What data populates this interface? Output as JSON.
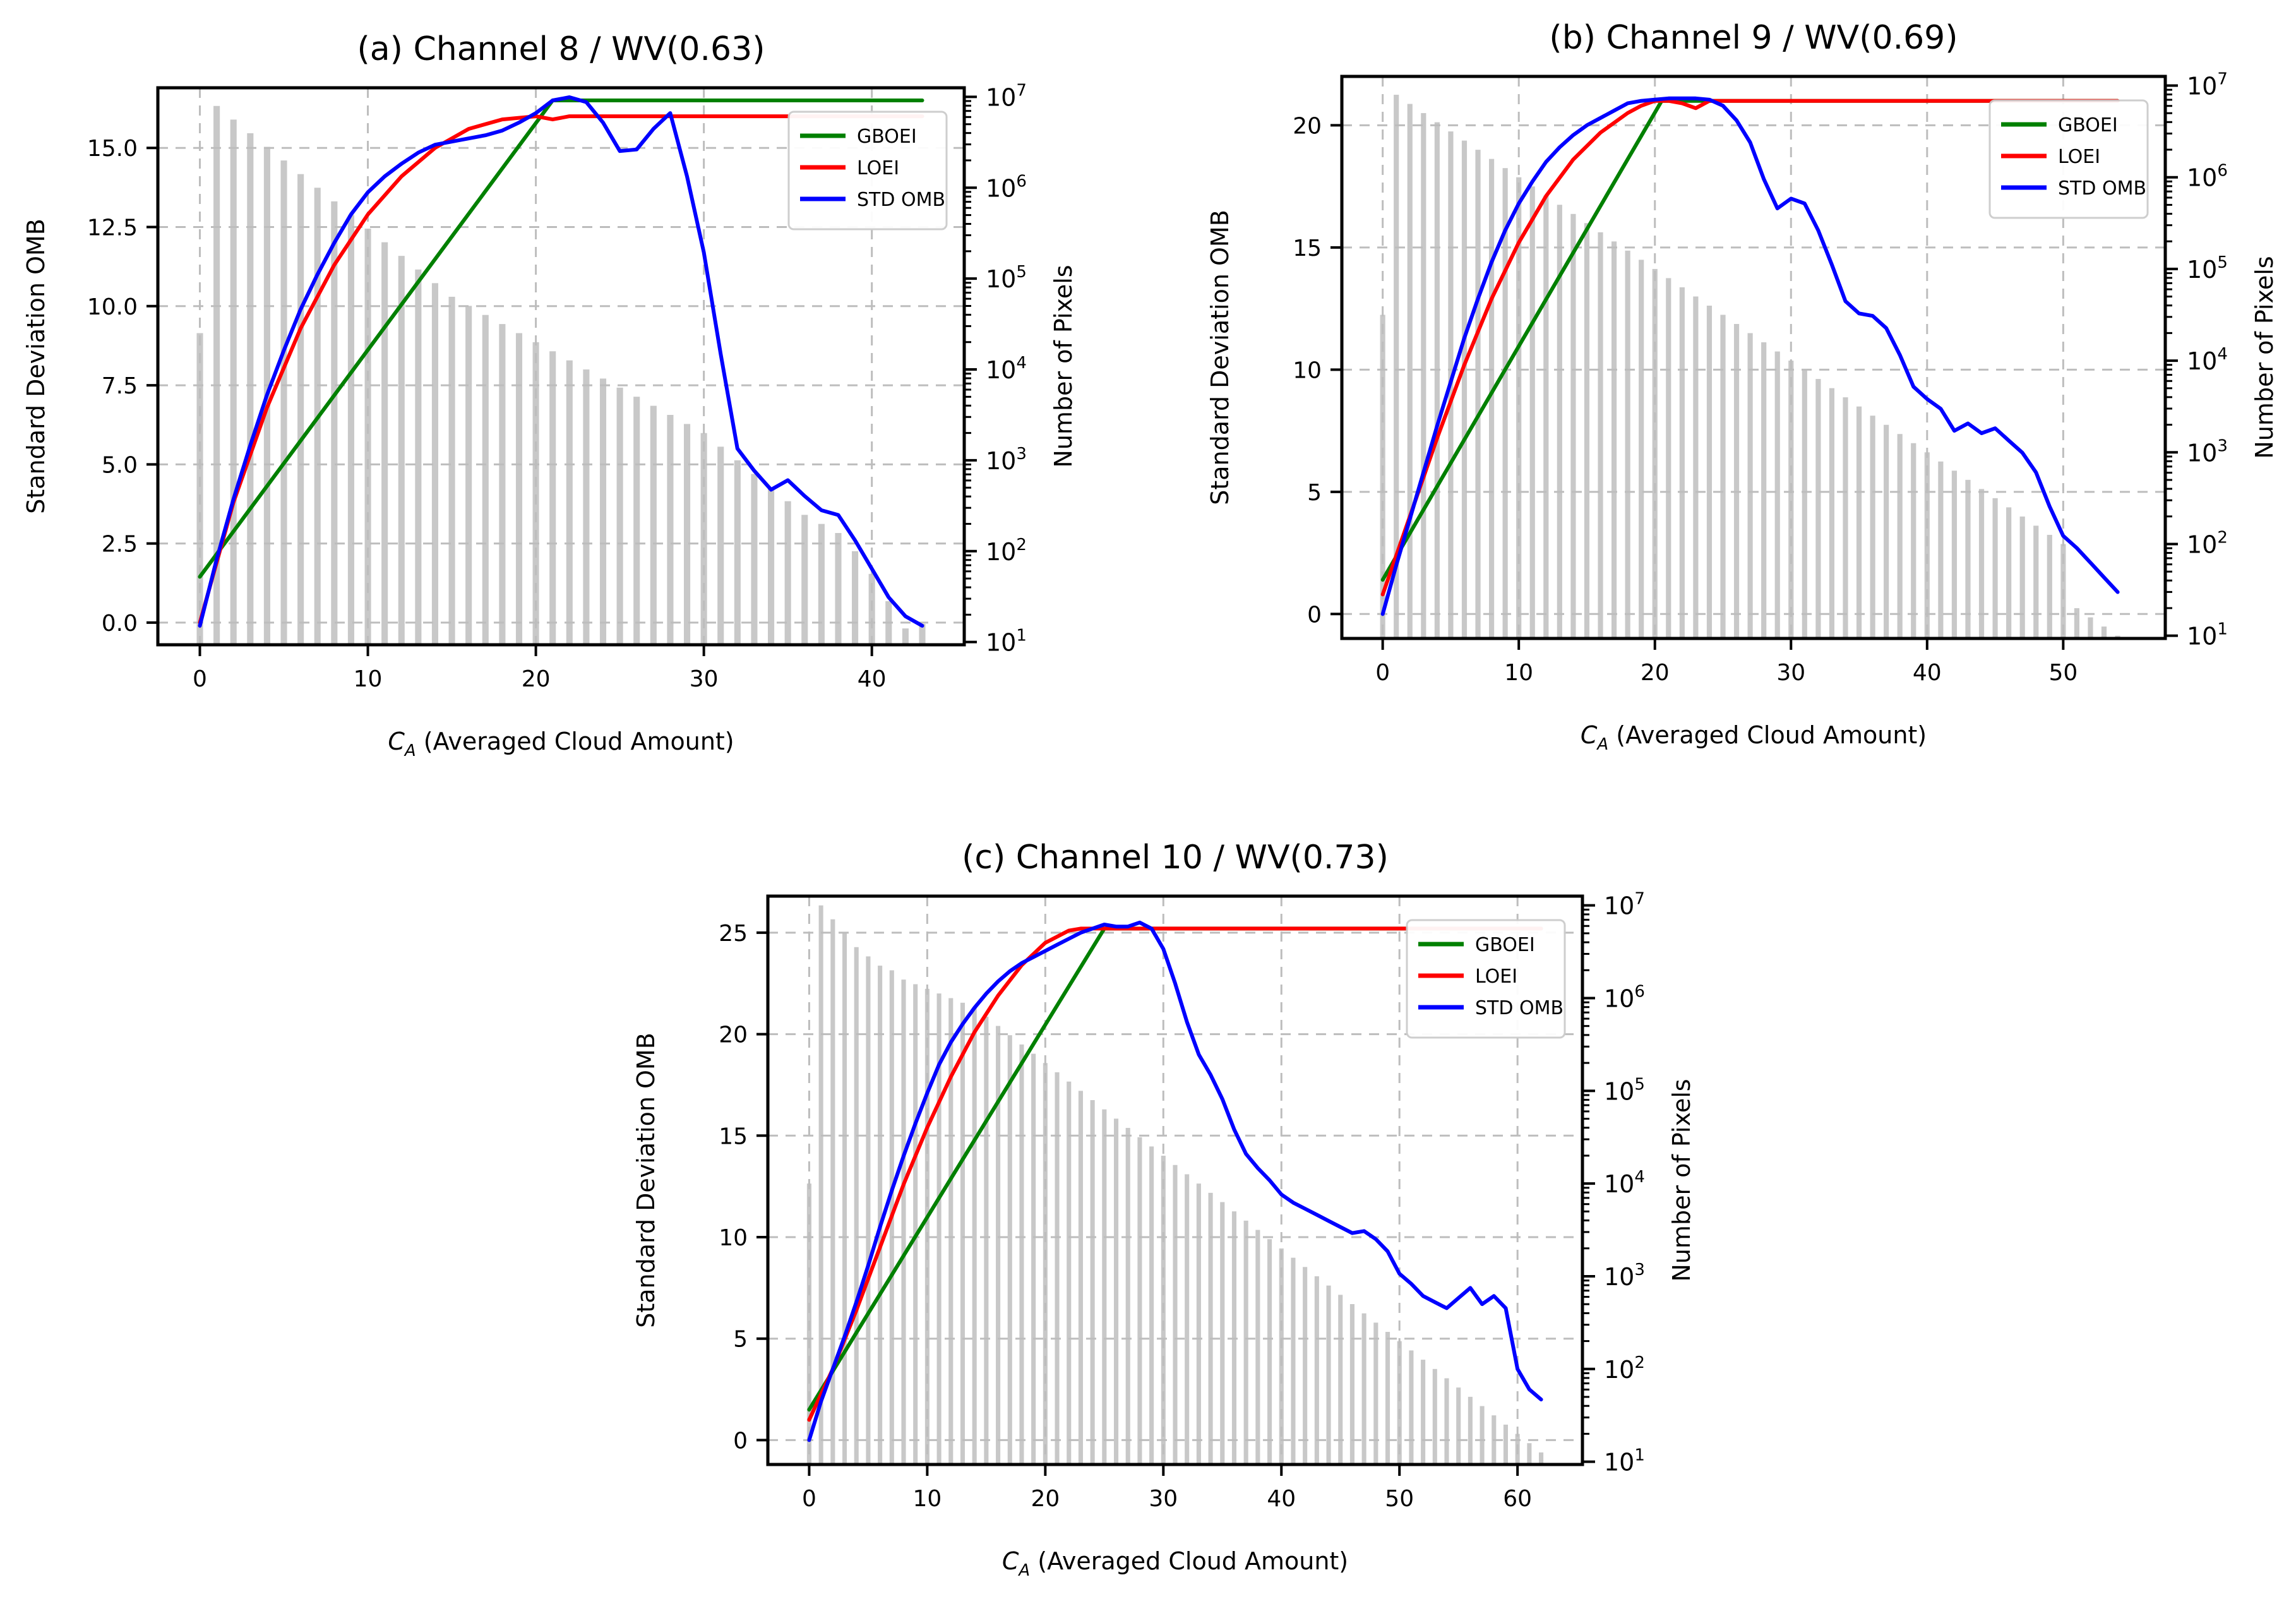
{
  "figure": {
    "panels": 3
  },
  "chart_data": [
    {
      "type": "line",
      "title": "(a) Channel 8 / WV(0.63)",
      "xlabel_sym": "C",
      "xlabel_sub": "A",
      "xlabel_rest": " (Averaged Cloud Amount)",
      "ylabel": "Standard Deviation OMB",
      "y2label": "Number of Pixels",
      "xlim": [
        -2.5,
        45.5
      ],
      "ylim": [
        -0.7,
        16.9
      ],
      "y2_log_range": [
        0.97,
        7.1
      ],
      "xticks": [
        0,
        10,
        20,
        30,
        40
      ],
      "xticklabels": [
        "0",
        "10",
        "20",
        "30",
        "40"
      ],
      "yticks": [
        0,
        2.5,
        5,
        7.5,
        10,
        12.5,
        15
      ],
      "yticklabels": [
        "0.0",
        "2.5",
        "5.0",
        "7.5",
        "10.0",
        "12.5",
        "15.0"
      ],
      "y2ticks": [
        1,
        2,
        3,
        4,
        5,
        6,
        7
      ],
      "y2ticklabels": [
        {
          "base": "10",
          "exp": "1"
        },
        {
          "base": "10",
          "exp": "2"
        },
        {
          "base": "10",
          "exp": "3"
        },
        {
          "base": "10",
          "exp": "4"
        },
        {
          "base": "10",
          "exp": "5"
        },
        {
          "base": "10",
          "exp": "6"
        },
        {
          "base": "10",
          "exp": "7"
        }
      ],
      "grid": true,
      "legend_position": "upper-right",
      "series": [
        {
          "name": "GBOEI",
          "color": "#008000",
          "x": [
            0,
            21,
            43
          ],
          "y": [
            1.45,
            16.5,
            16.5
          ]
        },
        {
          "name": "LOEI",
          "color": "#ff0000",
          "x": [
            0,
            2,
            4,
            6,
            8,
            10,
            12,
            14,
            16,
            18,
            20,
            21,
            22,
            24,
            26,
            28,
            30,
            35,
            40,
            43
          ],
          "y": [
            0,
            3.8,
            6.8,
            9.3,
            11.3,
            12.9,
            14.1,
            15.0,
            15.6,
            15.9,
            16.0,
            15.9,
            16.0,
            16.0,
            16.0,
            16.0,
            16.0,
            16.0,
            16.0,
            16.0
          ]
        },
        {
          "name": "STD OMB",
          "color": "#0000ff",
          "x": [
            0,
            1,
            2,
            3,
            4,
            5,
            6,
            7,
            8,
            9,
            10,
            11,
            12,
            13,
            14,
            15,
            16,
            17,
            18,
            19,
            20,
            21,
            22,
            23,
            24,
            25,
            26,
            27,
            28,
            29,
            30,
            31,
            32,
            33,
            34,
            35,
            36,
            37,
            38,
            39,
            40,
            41,
            42,
            43
          ],
          "y": [
            -0.1,
            2.0,
            3.9,
            5.6,
            7.2,
            8.6,
            9.9,
            11.0,
            12.0,
            12.9,
            13.6,
            14.1,
            14.5,
            14.85,
            15.1,
            15.2,
            15.3,
            15.4,
            15.55,
            15.8,
            16.1,
            16.5,
            16.6,
            16.45,
            15.8,
            14.9,
            14.95,
            15.6,
            16.1,
            14.1,
            11.7,
            8.5,
            5.5,
            4.8,
            4.2,
            4.5,
            4.0,
            3.55,
            3.4,
            2.6,
            1.7,
            0.8,
            0.2,
            -0.1
          ]
        },
        {
          "name": "",
          "kind": "bar",
          "color": "#c8c8c8",
          "x": [
            0,
            1,
            2,
            3,
            4,
            5,
            6,
            7,
            8,
            9,
            10,
            11,
            12,
            13,
            14,
            15,
            16,
            17,
            18,
            19,
            20,
            21,
            22,
            23,
            24,
            25,
            26,
            27,
            28,
            29,
            30,
            31,
            32,
            33,
            34,
            35,
            36,
            37,
            38,
            39,
            40,
            41,
            42,
            43
          ],
          "log10_count": [
            4.4,
            6.9,
            6.75,
            6.6,
            6.45,
            6.3,
            6.15,
            6.0,
            5.85,
            5.7,
            5.55,
            5.4,
            5.25,
            5.1,
            4.95,
            4.8,
            4.7,
            4.6,
            4.5,
            4.4,
            4.3,
            4.2,
            4.1,
            4.0,
            3.9,
            3.8,
            3.7,
            3.6,
            3.5,
            3.4,
            3.3,
            3.15,
            3.0,
            2.85,
            2.7,
            2.55,
            2.4,
            2.3,
            2.2,
            2.0,
            1.75,
            1.45,
            1.15,
            1.2
          ]
        }
      ]
    },
    {
      "type": "line",
      "title": "(b) Channel 9 / WV(0.69)",
      "xlabel_sym": "C",
      "xlabel_sub": "A",
      "xlabel_rest": " (Averaged Cloud Amount)",
      "ylabel": "Standard Deviation OMB",
      "y2label": "Number of Pixels",
      "xlim": [
        -3,
        57.5
      ],
      "ylim": [
        -1,
        22
      ],
      "y2_log_range": [
        0.97,
        7.1
      ],
      "xticks": [
        0,
        10,
        20,
        30,
        40,
        50
      ],
      "xticklabels": [
        "0",
        "10",
        "20",
        "30",
        "40",
        "50"
      ],
      "yticks": [
        0,
        5,
        10,
        15,
        20
      ],
      "yticklabels": [
        "0",
        "5",
        "10",
        "15",
        "20"
      ],
      "y2ticks": [
        1,
        2,
        3,
        4,
        5,
        6,
        7
      ],
      "y2ticklabels": [
        {
          "base": "10",
          "exp": "1"
        },
        {
          "base": "10",
          "exp": "2"
        },
        {
          "base": "10",
          "exp": "3"
        },
        {
          "base": "10",
          "exp": "4"
        },
        {
          "base": "10",
          "exp": "5"
        },
        {
          "base": "10",
          "exp": "6"
        },
        {
          "base": "10",
          "exp": "7"
        }
      ],
      "grid": true,
      "legend_position": "upper-right",
      "series": [
        {
          "name": "GBOEI",
          "color": "#008000",
          "x": [
            0,
            20.5,
            54
          ],
          "y": [
            1.4,
            21.0,
            21.0
          ]
        },
        {
          "name": "LOEI",
          "color": "#ff0000",
          "x": [
            0,
            2,
            4,
            6,
            8,
            10,
            12,
            14,
            16,
            18,
            19,
            20,
            21,
            22,
            23,
            24,
            25,
            26,
            28,
            30,
            35,
            40,
            45,
            50,
            54
          ],
          "y": [
            0.8,
            4.0,
            7.2,
            10.2,
            12.9,
            15.2,
            17.1,
            18.6,
            19.7,
            20.5,
            20.8,
            21.0,
            21.0,
            20.9,
            20.7,
            21.0,
            21.0,
            21.0,
            21.0,
            21.0,
            21.0,
            21.0,
            21.0,
            21.0,
            21.0
          ]
        },
        {
          "name": "STD OMB",
          "color": "#0000ff",
          "x": [
            0,
            1,
            2,
            3,
            4,
            5,
            6,
            7,
            8,
            9,
            10,
            11,
            12,
            13,
            14,
            15,
            16,
            17,
            18,
            19,
            20,
            21,
            22,
            23,
            24,
            25,
            26,
            27,
            28,
            29,
            30,
            31,
            32,
            33,
            34,
            35,
            36,
            37,
            38,
            39,
            40,
            41,
            42,
            43,
            44,
            45,
            46,
            47,
            48,
            49,
            50,
            51,
            52,
            53,
            54
          ],
          "y": [
            0,
            2.0,
            3.9,
            5.8,
            7.7,
            9.5,
            11.3,
            12.9,
            14.4,
            15.7,
            16.8,
            17.7,
            18.5,
            19.1,
            19.6,
            20.0,
            20.3,
            20.6,
            20.9,
            21.0,
            21.05,
            21.1,
            21.1,
            21.1,
            21.05,
            20.8,
            20.2,
            19.3,
            17.8,
            16.6,
            17.0,
            16.8,
            15.7,
            14.3,
            12.8,
            12.3,
            12.2,
            11.7,
            10.6,
            9.3,
            8.8,
            8.4,
            7.5,
            7.8,
            7.4,
            7.6,
            7.1,
            6.6,
            5.8,
            4.4,
            3.2,
            2.7,
            2.1,
            1.5,
            0.9
          ]
        },
        {
          "name": "",
          "kind": "bar",
          "color": "#c8c8c8",
          "x": [
            0,
            1,
            2,
            3,
            4,
            5,
            6,
            7,
            8,
            9,
            10,
            11,
            12,
            13,
            14,
            15,
            16,
            17,
            18,
            19,
            20,
            21,
            22,
            23,
            24,
            25,
            26,
            27,
            28,
            29,
            30,
            31,
            32,
            33,
            34,
            35,
            36,
            37,
            38,
            39,
            40,
            41,
            42,
            43,
            44,
            45,
            46,
            47,
            48,
            49,
            50,
            51,
            52,
            53,
            54
          ],
          "log10_count": [
            4.5,
            6.9,
            6.8,
            6.7,
            6.6,
            6.5,
            6.4,
            6.3,
            6.2,
            6.1,
            6.0,
            5.9,
            5.8,
            5.7,
            5.6,
            5.5,
            5.4,
            5.3,
            5.2,
            5.1,
            5.0,
            4.9,
            4.8,
            4.7,
            4.6,
            4.5,
            4.4,
            4.3,
            4.2,
            4.1,
            4.0,
            3.9,
            3.8,
            3.7,
            3.6,
            3.5,
            3.4,
            3.3,
            3.2,
            3.1,
            3.0,
            2.9,
            2.8,
            2.7,
            2.6,
            2.5,
            2.4,
            2.3,
            2.2,
            2.1,
            2.0,
            1.3,
            1.2,
            1.1,
            1.0
          ]
        }
      ]
    },
    {
      "type": "line",
      "title": "(c) Channel 10 / WV(0.73)",
      "xlabel_sym": "C",
      "xlabel_sub": "A",
      "xlabel_rest": " (Averaged Cloud Amount)",
      "ylabel": "Standard Deviation OMB",
      "y2label": "Number of Pixels",
      "xlim": [
        -3.5,
        65.5
      ],
      "ylim": [
        -1.2,
        26.8
      ],
      "y2_log_range": [
        0.97,
        7.1
      ],
      "xticks": [
        0,
        10,
        20,
        30,
        40,
        50,
        60
      ],
      "xticklabels": [
        "0",
        "10",
        "20",
        "30",
        "40",
        "50",
        "60"
      ],
      "yticks": [
        0,
        5,
        10,
        15,
        20,
        25
      ],
      "yticklabels": [
        "0",
        "5",
        "10",
        "15",
        "20",
        "25"
      ],
      "y2ticks": [
        1,
        2,
        3,
        4,
        5,
        6,
        7
      ],
      "y2ticklabels": [
        {
          "base": "10",
          "exp": "1"
        },
        {
          "base": "10",
          "exp": "2"
        },
        {
          "base": "10",
          "exp": "3"
        },
        {
          "base": "10",
          "exp": "4"
        },
        {
          "base": "10",
          "exp": "5"
        },
        {
          "base": "10",
          "exp": "6"
        },
        {
          "base": "10",
          "exp": "7"
        }
      ],
      "grid": true,
      "legend_position": "upper-right",
      "series": [
        {
          "name": "GBOEI",
          "color": "#008000",
          "x": [
            0,
            25,
            62
          ],
          "y": [
            1.5,
            25.2,
            25.2
          ]
        },
        {
          "name": "LOEI",
          "color": "#ff0000",
          "x": [
            0,
            2,
            4,
            6,
            8,
            10,
            12,
            14,
            16,
            18,
            20,
            22,
            23,
            24,
            25,
            26,
            28,
            30,
            40,
            50,
            62
          ],
          "y": [
            1.0,
            3.5,
            6.4,
            9.5,
            12.6,
            15.4,
            17.9,
            20.1,
            21.9,
            23.4,
            24.5,
            25.1,
            25.2,
            25.2,
            25.2,
            25.2,
            25.2,
            25.2,
            25.2,
            25.2,
            25.2
          ]
        },
        {
          "name": "STD OMB",
          "color": "#0000ff",
          "x": [
            0,
            1,
            2,
            3,
            4,
            5,
            6,
            7,
            8,
            9,
            10,
            11,
            12,
            13,
            14,
            15,
            16,
            17,
            18,
            19,
            20,
            21,
            22,
            23,
            24,
            25,
            26,
            27,
            28,
            29,
            30,
            31,
            32,
            33,
            34,
            35,
            36,
            37,
            38,
            39,
            40,
            41,
            42,
            43,
            44,
            45,
            46,
            47,
            48,
            49,
            50,
            51,
            52,
            53,
            54,
            55,
            56,
            57,
            58,
            59,
            60,
            61,
            62
          ],
          "y": [
            0,
            1.9,
            3.5,
            5.1,
            6.8,
            8.6,
            10.5,
            12.3,
            14.0,
            15.6,
            17.1,
            18.5,
            19.6,
            20.5,
            21.3,
            22.0,
            22.6,
            23.1,
            23.5,
            23.8,
            24.1,
            24.4,
            24.7,
            25.0,
            25.2,
            25.4,
            25.3,
            25.3,
            25.5,
            25.2,
            24.2,
            22.5,
            20.6,
            19.0,
            18.0,
            16.8,
            15.3,
            14.1,
            13.4,
            12.8,
            12.1,
            11.7,
            11.4,
            11.1,
            10.8,
            10.5,
            10.2,
            10.3,
            9.9,
            9.3,
            8.2,
            7.7,
            7.1,
            6.8,
            6.5,
            7.0,
            7.5,
            6.7,
            7.1,
            6.5,
            3.5,
            2.5,
            2.0
          ]
        },
        {
          "name": "",
          "kind": "bar",
          "color": "#c8c8c8",
          "x": [
            0,
            1,
            2,
            3,
            4,
            5,
            6,
            7,
            8,
            9,
            10,
            11,
            12,
            13,
            14,
            15,
            16,
            17,
            18,
            19,
            20,
            21,
            22,
            23,
            24,
            25,
            26,
            27,
            28,
            29,
            30,
            31,
            32,
            33,
            34,
            35,
            36,
            37,
            38,
            39,
            40,
            41,
            42,
            43,
            44,
            45,
            46,
            47,
            48,
            49,
            50,
            51,
            52,
            53,
            54,
            55,
            56,
            57,
            58,
            59,
            60,
            61,
            62
          ],
          "log10_count": [
            4.0,
            7.0,
            6.85,
            6.7,
            6.55,
            6.45,
            6.35,
            6.3,
            6.2,
            6.15,
            6.1,
            6.05,
            6.0,
            5.95,
            5.9,
            5.8,
            5.7,
            5.6,
            5.5,
            5.4,
            5.3,
            5.2,
            5.1,
            5.0,
            4.9,
            4.8,
            4.7,
            4.6,
            4.5,
            4.4,
            4.3,
            4.2,
            4.1,
            4.0,
            3.9,
            3.8,
            3.7,
            3.6,
            3.5,
            3.4,
            3.3,
            3.2,
            3.1,
            3.0,
            2.9,
            2.8,
            2.7,
            2.6,
            2.5,
            2.4,
            2.3,
            2.2,
            2.1,
            2.0,
            1.9,
            1.8,
            1.7,
            1.6,
            1.5,
            1.4,
            1.3,
            1.2,
            1.1
          ]
        }
      ]
    }
  ]
}
